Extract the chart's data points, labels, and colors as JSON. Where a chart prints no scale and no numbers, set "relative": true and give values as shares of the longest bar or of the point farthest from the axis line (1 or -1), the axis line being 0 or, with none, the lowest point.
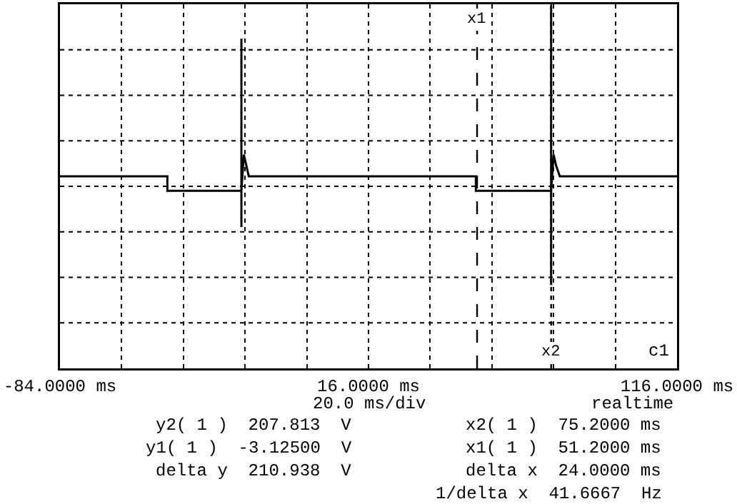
{
  "chart_data": {
    "type": "line",
    "relative": true,
    "grid": true,
    "marker": "none",
    "line_style": "solid",
    "x": [
      -84,
      -49.2,
      -49.2,
      -25.2,
      -25.2,
      -25.2,
      -25.2,
      -24.4,
      -23.6,
      -22.8,
      50.8,
      50.8,
      75.2,
      75.2,
      75.2,
      75.2,
      76,
      76.8,
      78,
      116
    ],
    "series": [
      {
        "color": "#000000",
        "values": [
          0.53,
          0.53,
          0.49,
          0.49,
          0.91,
          0.39,
          0.49,
          0.59,
          0.56,
          0.53,
          0.53,
          0.49,
          0.49,
          1.0,
          0.23,
          0.49,
          0.59,
          0.56,
          0.53,
          0.53
        ]
      }
    ],
    "xlim": [
      -84,
      116
    ],
    "xticks": [
      {
        "value": -84,
        "label": "-84.0000 ms"
      },
      {
        "value": -64,
        "label": null
      },
      {
        "value": -44,
        "label": null
      },
      {
        "value": -24,
        "label": null
      },
      {
        "value": -4,
        "label": null
      },
      {
        "value": 16,
        "label": "16.0000 ms"
      },
      {
        "value": 36,
        "label": null
      },
      {
        "value": 56,
        "label": null
      },
      {
        "value": 76,
        "label": null
      },
      {
        "value": 96,
        "label": null
      },
      {
        "value": 116,
        "label": "116.0000 ms"
      }
    ],
    "ref_lines": [
      {
        "axis": "x",
        "value": 51.2,
        "label": "x1",
        "line_style": "dashed",
        "color": "#000000"
      },
      {
        "axis": "x",
        "value": 75.2,
        "label": "x2",
        "line_style": "dotted",
        "color": "#000000"
      }
    ],
    "annotations": [
      "20.0 ms/div",
      "realtime",
      "c1",
      "y2( 1 )  207.813  V",
      "y1( 1 )  -3.12500  V",
      "delta y  210.938  V",
      "x2( 1 )  75.2000 ms",
      "x1( 1 )  51.2000 ms",
      "delta x  24.0000 ms",
      "1/delta x  41.6667  Hz"
    ]
  }
}
